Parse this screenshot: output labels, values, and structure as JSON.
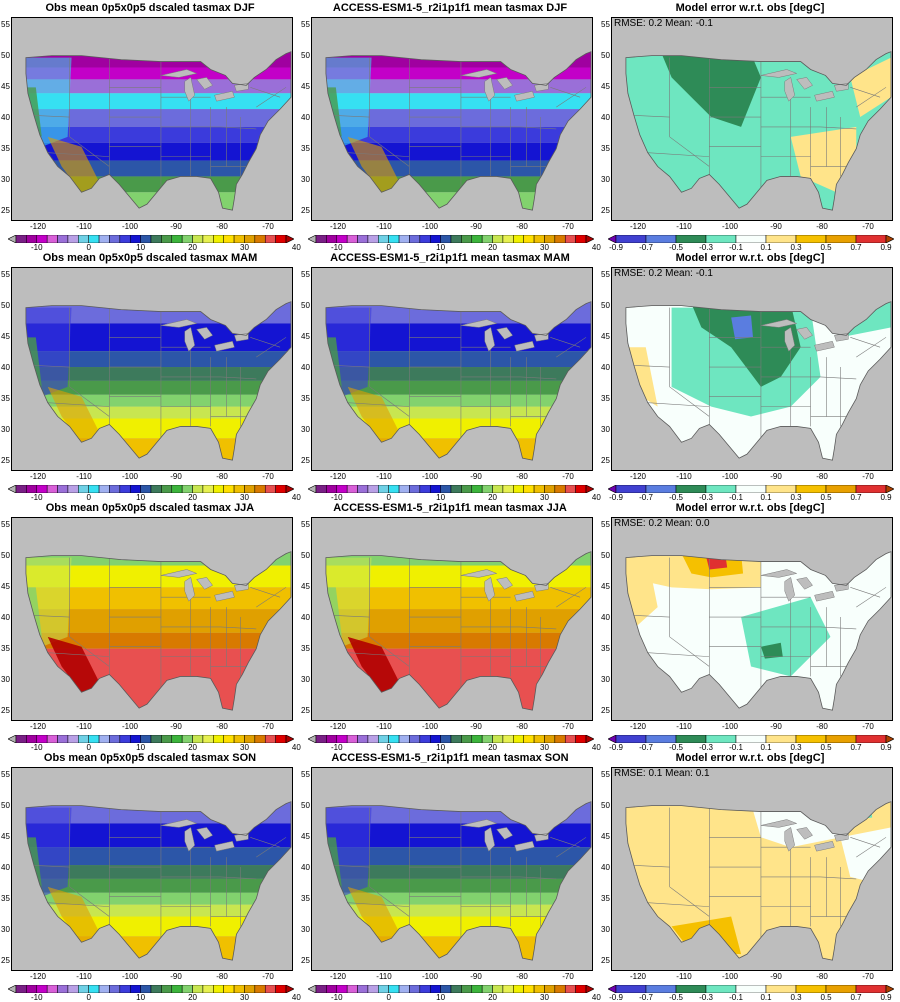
{
  "figure": {
    "left_colorbar_ticks": [
      "-10",
      "0",
      "10",
      "20",
      "30",
      "40"
    ],
    "left_colorbar_colors": [
      "#b4b4b4",
      "#7a1f86",
      "#a000a0",
      "#c300c8",
      "#d85fd8",
      "#9a6fd8",
      "#b9a0e6",
      "#6fd1e6",
      "#36e0f2",
      "#a0b0f0",
      "#6c6cdc",
      "#3b3bdc",
      "#1414d2",
      "#2c56a8",
      "#3d7a5c",
      "#4a9a4a",
      "#3cb43c",
      "#82d26e",
      "#c8e650",
      "#e6f050",
      "#f0f000",
      "#ffe000",
      "#f0c000",
      "#e0a000",
      "#d87a00",
      "#e85050",
      "#e00000",
      "#b00000"
    ],
    "right_colorbar_ticks": [
      "-0.9",
      "-0.7",
      "-0.5",
      "-0.3",
      "-0.1",
      "0.1",
      "0.3",
      "0.5",
      "0.7",
      "0.9"
    ],
    "right_colorbar_colors": [
      "#7000b0",
      "#4040d0",
      "#5a7de0",
      "#2e8b57",
      "#6ee6c0",
      "#f8fffc",
      "#ffe48a",
      "#f5c000",
      "#e8a000",
      "#e03030",
      "#b04000"
    ],
    "x_ticks": [
      "-120",
      "-110",
      "-100",
      "-90",
      "-80",
      "-70"
    ],
    "y_ticks": [
      "55",
      "50",
      "45",
      "40",
      "35",
      "30",
      "25"
    ]
  },
  "rows": [
    {
      "season": "DJF",
      "obs_title": "Obs mean 0p5x0p5 dscaled tasmax DJF",
      "model_title": "ACCESS-ESM1-5_r2i1p1f1 mean tasmax DJF",
      "error_title": "Model error w.r.t. obs [degC]",
      "stats": "RMSE: 0.2  Mean: -0.1"
    },
    {
      "season": "MAM",
      "obs_title": "Obs mean 0p5x0p5 dscaled tasmax MAM",
      "model_title": "ACCESS-ESM1-5_r2i1p1f1 mean tasmax MAM",
      "error_title": "Model error w.r.t. obs [degC]",
      "stats": "RMSE: 0.2  Mean: -0.1"
    },
    {
      "season": "JJA",
      "obs_title": "Obs mean 0p5x0p5 dscaled tasmax JJA",
      "model_title": "ACCESS-ESM1-5_r2i1p1f1 mean tasmax JJA",
      "error_title": "Model error w.r.t. obs [degC]",
      "stats": "RMSE: 0.2  Mean: 0.0"
    },
    {
      "season": "SON",
      "obs_title": "Obs mean 0p5x0p5 dscaled tasmax SON",
      "model_title": "ACCESS-ESM1-5_r2i1p1f1 mean tasmax SON",
      "error_title": "Model error w.r.t. obs [degC]",
      "stats": "RMSE: 0.1  Mean: 0.1"
    }
  ]
}
